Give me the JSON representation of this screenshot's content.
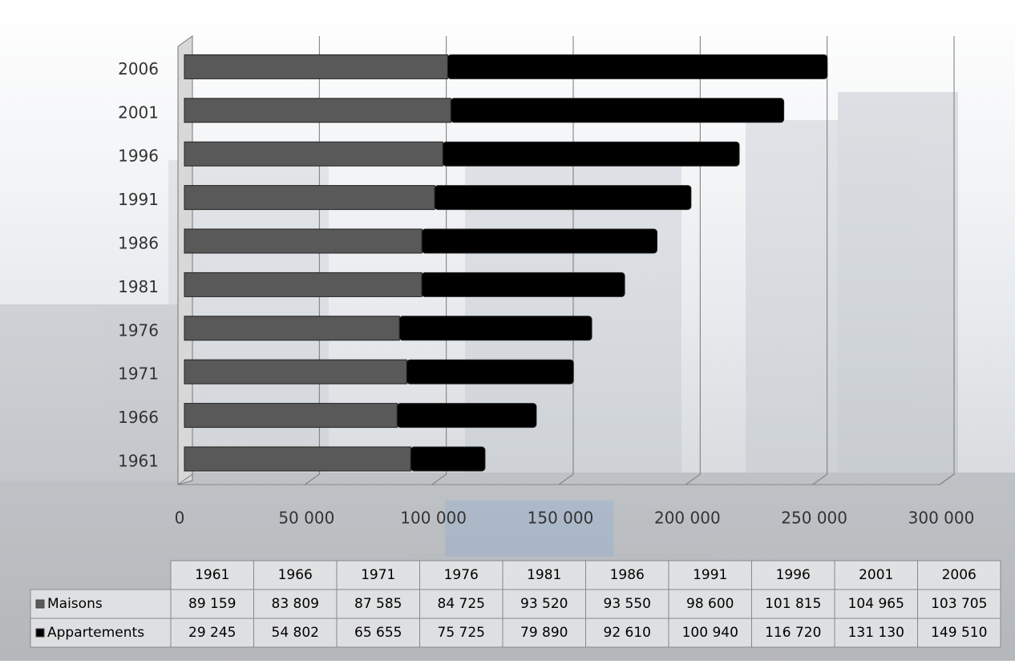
{
  "chart_data": {
    "type": "bar",
    "orientation": "horizontal",
    "stacked": true,
    "categories": [
      "1961",
      "1966",
      "1971",
      "1976",
      "1981",
      "1986",
      "1991",
      "1996",
      "2001",
      "2006"
    ],
    "series": [
      {
        "name": "Maisons",
        "color": "#595959",
        "values": [
          89159,
          83809,
          87585,
          84725,
          93520,
          93550,
          98600,
          101815,
          104965,
          103705
        ],
        "value_labels": [
          "89 159",
          "83 809",
          "87 585",
          "84 725",
          "93 520",
          "93 550",
          "98 600",
          "101 815",
          "104 965",
          "103 705"
        ]
      },
      {
        "name": "Appartements",
        "color": "#000000",
        "values": [
          29245,
          54802,
          65655,
          75725,
          79890,
          92610,
          100940,
          116720,
          131130,
          149510
        ],
        "value_labels": [
          "29 245",
          "54 802",
          "65 655",
          "75 725",
          "79 890",
          "92 610",
          "100 940",
          "116 720",
          "131 130",
          "149 510"
        ]
      }
    ],
    "xlim": [
      0,
      300000
    ],
    "xticks": [
      0,
      {
        "value": 50000,
        "label": "50 000"
      },
      {
        "value": 100000,
        "label": "100 000"
      },
      {
        "value": 150000,
        "label": "150 000"
      },
      {
        "value": 200000,
        "label": "200 000"
      },
      {
        "value": 250000,
        "label": "250 000"
      },
      {
        "value": 300000,
        "label": "300 000"
      }
    ],
    "grid": true,
    "data_table": true
  }
}
